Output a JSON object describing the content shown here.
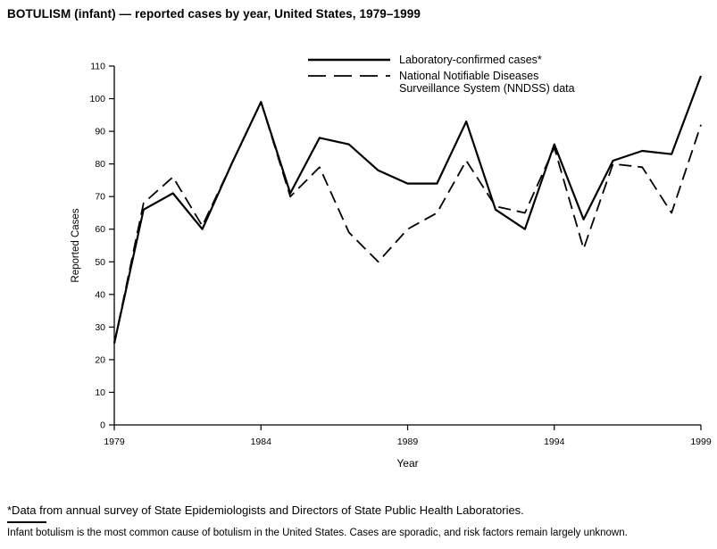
{
  "title": "BOTULISM (infant) — reported cases by year, United States, 1979–1999",
  "chart_data": {
    "type": "line",
    "title": "BOTULISM (infant) — reported cases by year, United States, 1979–1999",
    "xlabel": "Year",
    "ylabel": "Reported Cases",
    "ylim": [
      0,
      110
    ],
    "ytick_step": 10,
    "xticks": [
      1979,
      1984,
      1989,
      1994,
      1999
    ],
    "grid": false,
    "legend_position": "top-center",
    "x": [
      1979,
      1980,
      1981,
      1982,
      1983,
      1984,
      1985,
      1986,
      1987,
      1988,
      1989,
      1990,
      1991,
      1992,
      1993,
      1994,
      1995,
      1996,
      1997,
      1998,
      1999
    ],
    "series": [
      {
        "name": "Laboratory-confirmed cases*",
        "style": "solid",
        "values": [
          25,
          66,
          71,
          60,
          80,
          99,
          71,
          88,
          86,
          78,
          74,
          74,
          93,
          66,
          60,
          86,
          63,
          81,
          84,
          83,
          107
        ]
      },
      {
        "name": "National Notifiable Diseases Surveillance System (NNDSS) data",
        "style": "dashed",
        "values": [
          25,
          68,
          76,
          61,
          80,
          99,
          70,
          79,
          59,
          50,
          60,
          65,
          81,
          67,
          65,
          85,
          54,
          80,
          79,
          65,
          92
        ]
      }
    ]
  },
  "legend": {
    "series1_label": "Laboratory-confirmed cases*",
    "series2_label_line1": "National Notifiable Diseases",
    "series2_label_line2": "Surveillance System (NNDSS) data"
  },
  "footnotes": {
    "asterisk": "*Data from annual survey of State Epidemiologists and Directors of State Public Health Laboratories.",
    "note": "Infant botulism is the most common cause of botulism in the United States. Cases are sporadic, and risk factors remain largely unknown."
  },
  "colors": {
    "line": "#000000",
    "background": "#ffffff",
    "text": "#000000"
  }
}
